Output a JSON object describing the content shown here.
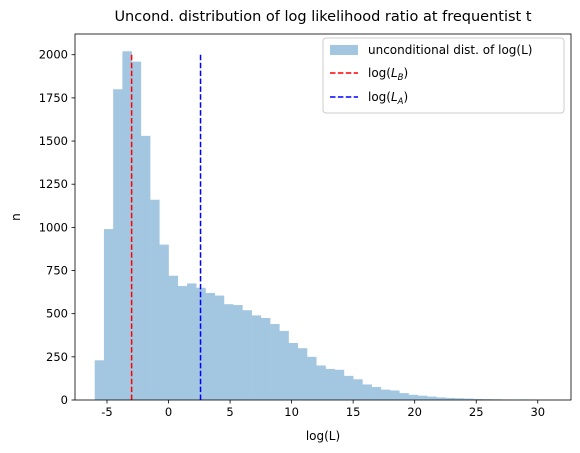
{
  "chart_data": {
    "type": "bar",
    "title": "Uncond. distribution of log likelihood ratio at frequentist  t",
    "xlabel": "log(L)",
    "ylabel": "n",
    "xlim": [
      -7.6,
      32.7
    ],
    "ylim": [
      0,
      2120
    ],
    "xticks": [
      "-5",
      "0",
      "5",
      "10",
      "15",
      "20",
      "25",
      "30"
    ],
    "yticks": [
      "0",
      "250",
      "500",
      "750",
      "1000",
      "1250",
      "1500",
      "1750",
      "2000"
    ],
    "grid": false,
    "legend_position": "top-right",
    "histogram": {
      "name": "unconditional dist. of log(L)",
      "color": "#a3c6e1",
      "bin_start": -6.0,
      "bin_width": 0.75,
      "counts": [
        230,
        990,
        1800,
        2020,
        1960,
        1530,
        1160,
        900,
        720,
        660,
        675,
        650,
        620,
        605,
        555,
        550,
        520,
        490,
        475,
        440,
        400,
        330,
        300,
        250,
        200,
        180,
        175,
        140,
        120,
        90,
        75,
        60,
        55,
        40,
        30,
        25,
        20,
        15,
        12,
        10,
        8,
        6,
        5,
        4,
        3,
        2,
        3,
        2,
        1,
        1
      ]
    },
    "vlines": [
      {
        "name": "log($L_B$)",
        "label_base": "log(",
        "label_sub": "B",
        "x": -3.0,
        "ymax": 2000,
        "color": "#ff0000"
      },
      {
        "name": "log($L_A$)",
        "label_base": "log(",
        "label_sub": "A",
        "x": 2.6,
        "ymax": 2000,
        "color": "#0000ff"
      }
    ]
  }
}
